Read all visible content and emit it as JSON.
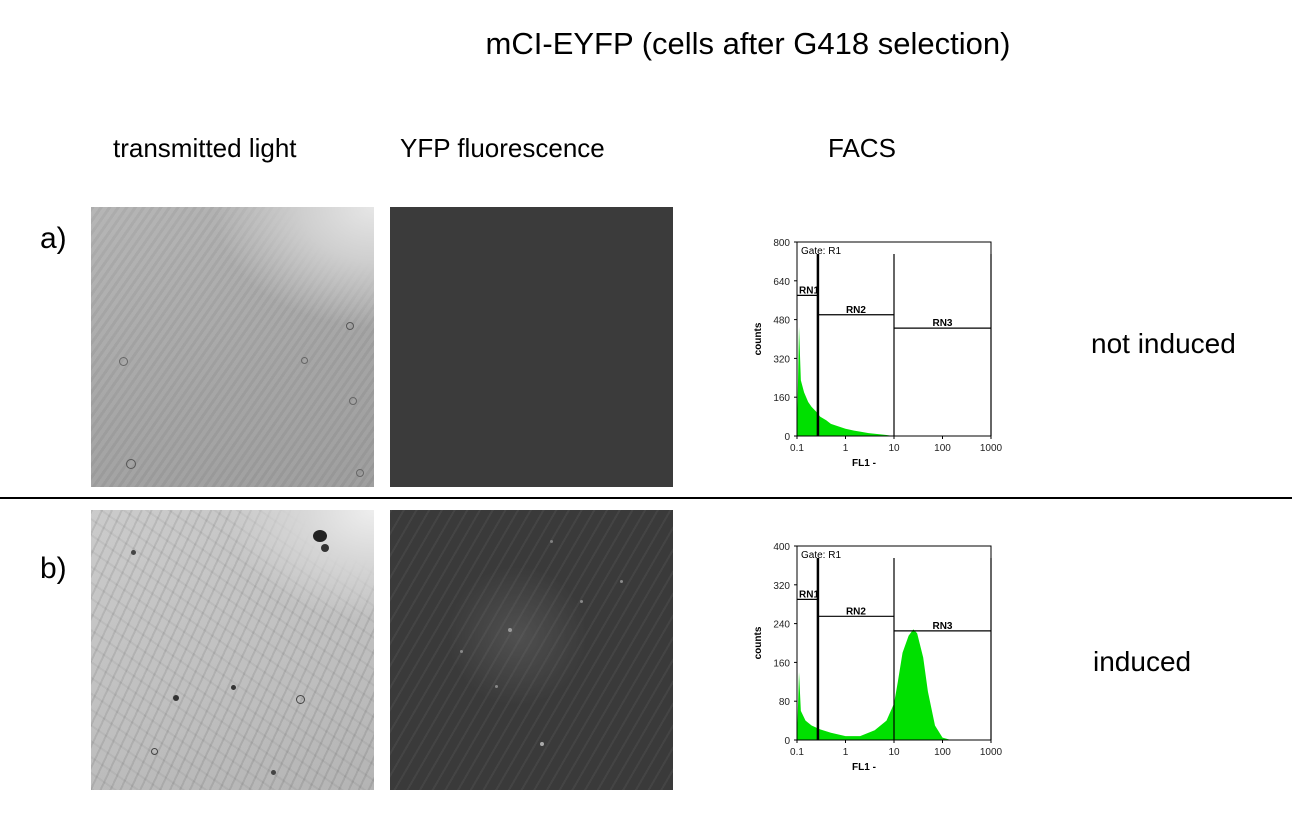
{
  "figure": {
    "title": "mCI-EYFP (cells after G418 selection)",
    "columns": {
      "transmitted": "transmitted light",
      "yfp": "YFP fluorescence",
      "facs": "FACS"
    },
    "rows": [
      {
        "label": "a)",
        "condition": "not induced"
      },
      {
        "label": "b)",
        "condition": "induced"
      }
    ]
  },
  "chart_data": [
    {
      "type": "area",
      "title": "Gate: R1",
      "xlabel": "FL1 -",
      "ylabel": "counts",
      "x_scale": "log",
      "xlim": [
        0.1,
        1000
      ],
      "ylim": [
        0,
        800
      ],
      "x_ticks": [
        "0.1",
        "1",
        "10",
        "100",
        "1000"
      ],
      "y_ticks": [
        "0",
        "160",
        "320",
        "480",
        "640",
        "800"
      ],
      "color": "#00e000",
      "series": [
        {
          "x": [
            0.1,
            0.11,
            0.12,
            0.14,
            0.17,
            0.2,
            0.25,
            0.3,
            0.4,
            0.5,
            0.7,
            1,
            1.5,
            2,
            3,
            5,
            7,
            10
          ],
          "values": [
            0,
            450,
            230,
            180,
            140,
            120,
            100,
            80,
            65,
            50,
            40,
            30,
            22,
            18,
            12,
            7,
            4,
            0
          ]
        }
      ],
      "regions": [
        {
          "name": "RN1",
          "x_range": [
            0.1,
            0.27
          ],
          "level": 580
        },
        {
          "name": "RN2",
          "x_range": [
            0.27,
            10
          ],
          "level": 500
        },
        {
          "name": "RN3",
          "x_range": [
            10,
            1000
          ],
          "level": 445
        }
      ]
    },
    {
      "type": "area",
      "title": "Gate: R1",
      "xlabel": "FL1 -",
      "ylabel": "counts",
      "x_scale": "log",
      "xlim": [
        0.1,
        1000
      ],
      "ylim": [
        0,
        400
      ],
      "x_ticks": [
        "0.1",
        "1",
        "10",
        "100",
        "1000"
      ],
      "y_ticks": [
        "0",
        "80",
        "160",
        "240",
        "320",
        "400"
      ],
      "color": "#00e000",
      "series": [
        {
          "x": [
            0.1,
            0.11,
            0.12,
            0.15,
            0.2,
            0.3,
            0.5,
            1,
            2,
            4,
            7,
            10,
            12,
            15,
            20,
            25,
            30,
            40,
            50,
            70,
            100,
            150
          ],
          "values": [
            0,
            140,
            60,
            40,
            30,
            22,
            15,
            8,
            8,
            20,
            40,
            75,
            120,
            180,
            215,
            228,
            220,
            170,
            100,
            30,
            5,
            0
          ]
        }
      ],
      "regions": [
        {
          "name": "RN1",
          "x_range": [
            0.1,
            0.27
          ],
          "level": 290
        },
        {
          "name": "RN2",
          "x_range": [
            0.27,
            10
          ],
          "level": 255
        },
        {
          "name": "RN3",
          "x_range": [
            10,
            1000
          ],
          "level": 225
        }
      ]
    }
  ]
}
